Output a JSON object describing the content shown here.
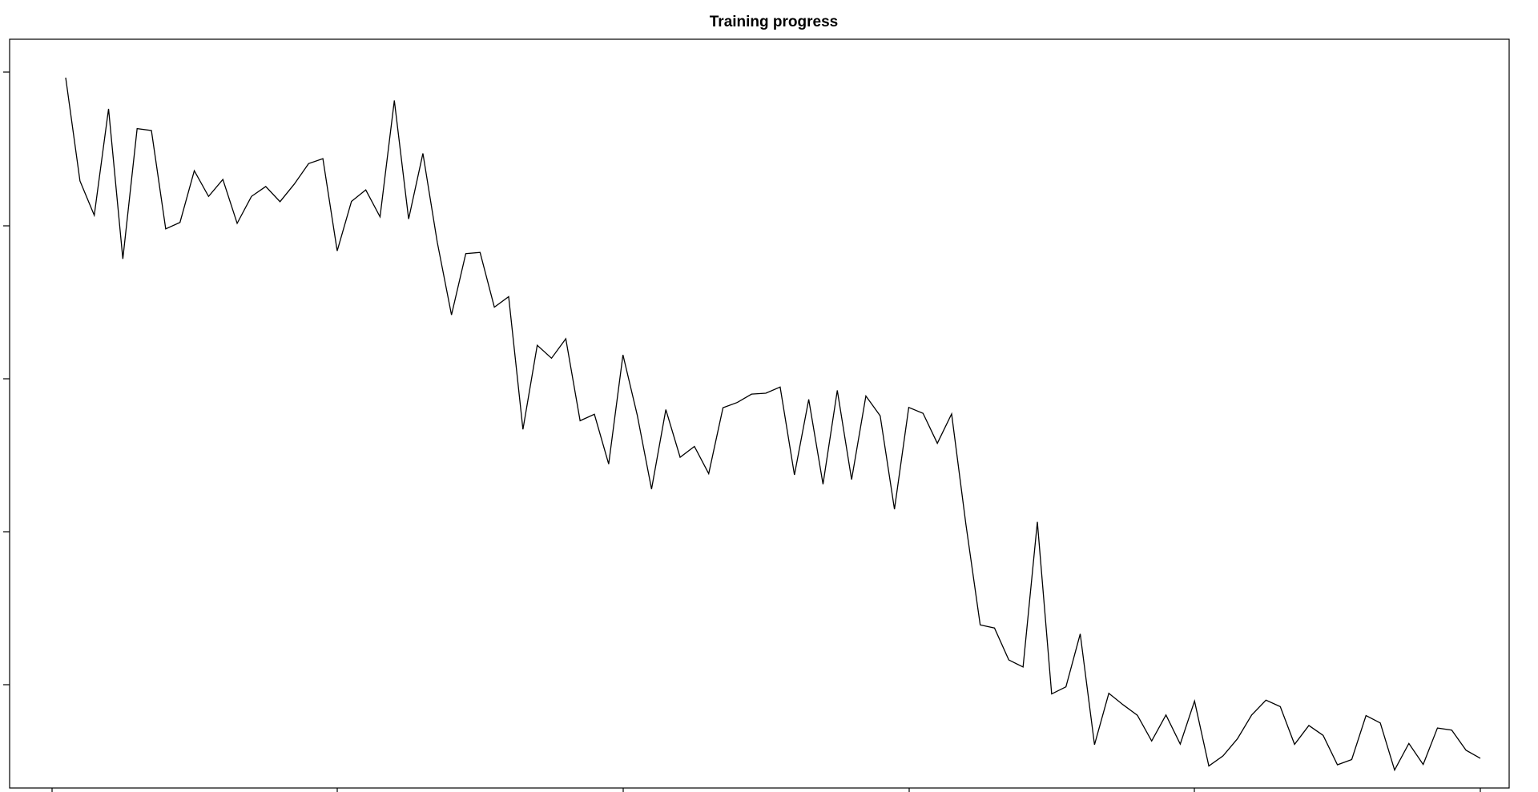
{
  "chart_data": {
    "type": "line",
    "title": "Training progress",
    "xlabel": "",
    "ylabel": "",
    "x_tick_count": 6,
    "y_tick_count": 5,
    "tick_labels_shown": false,
    "grid": false,
    "legend": "none",
    "colors": {
      "line": "#000000",
      "frame": "#000000",
      "background": "#ffffff"
    },
    "series": [
      {
        "values": [
          0.996,
          0.662,
          0.551,
          0.895,
          0.41,
          0.831,
          0.825,
          0.507,
          0.528,
          0.695,
          0.612,
          0.667,
          0.525,
          0.612,
          0.644,
          0.595,
          0.652,
          0.718,
          0.734,
          0.436,
          0.596,
          0.633,
          0.546,
          0.922,
          0.539,
          0.751,
          0.465,
          0.229,
          0.427,
          0.431,
          0.254,
          0.288,
          -0.141,
          0.131,
          0.089,
          0.152,
          -0.113,
          -0.092,
          -0.253,
          0.1,
          -0.095,
          -0.334,
          -0.077,
          -0.231,
          -0.196,
          -0.284,
          -0.071,
          -0.054,
          -0.027,
          -0.024,
          -0.004,
          -0.288,
          -0.044,
          -0.318,
          -0.015,
          -0.303,
          -0.033,
          -0.097,
          -0.399,
          -0.07,
          -0.089,
          -0.186,
          -0.091,
          -0.448,
          -0.773,
          -0.783,
          -0.886,
          -0.909,
          -0.44,
          -0.996,
          -0.973,
          -0.802,
          -1.16,
          -0.994,
          -1.031,
          -1.065,
          -1.148,
          -1.064,
          -1.158,
          -1.019,
          -1.229,
          -1.196,
          -1.141,
          -1.064,
          -1.016,
          -1.037,
          -1.159,
          -1.098,
          -1.13,
          -1.225,
          -1.208,
          -1.066,
          -1.09,
          -1.242,
          -1.156,
          -1.224,
          -1.106,
          -1.113,
          -1.178,
          -1.204
        ]
      }
    ],
    "xlim": [
      0.0,
      100.0
    ],
    "ylim": [
      -1.3,
      1.12
    ]
  }
}
